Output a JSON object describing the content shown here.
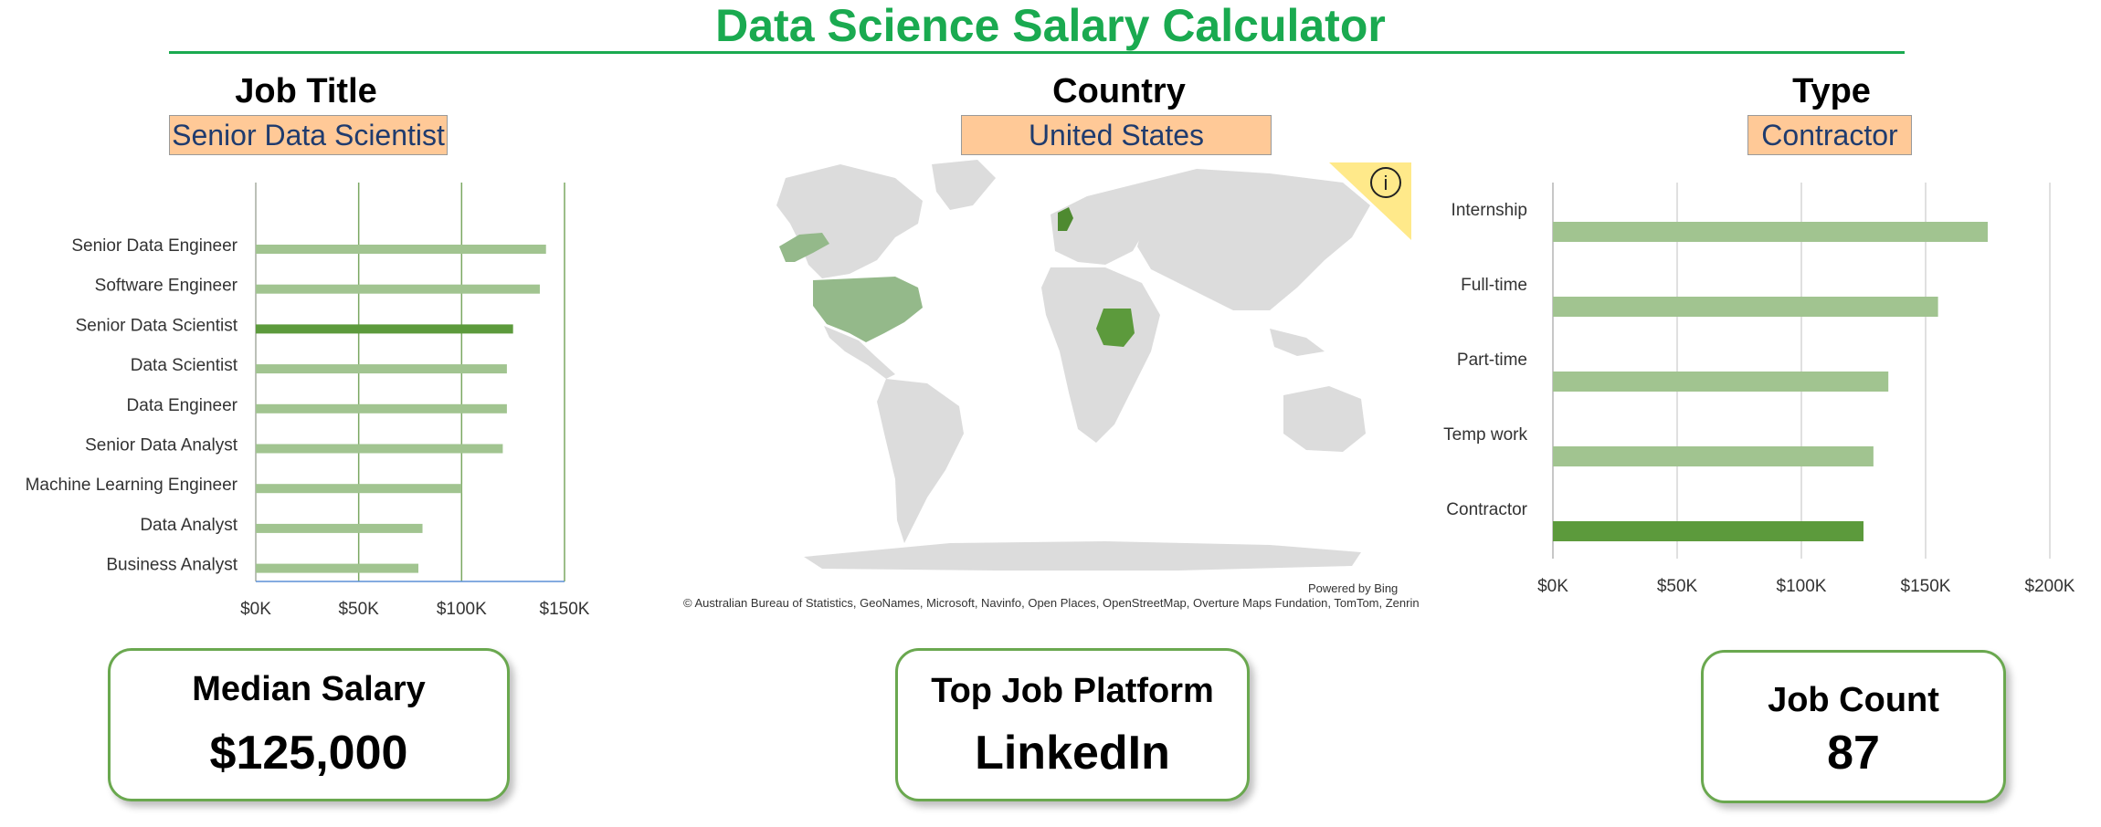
{
  "title": "Data Science Salary Calculator",
  "filters": {
    "job_title": {
      "label": "Job Title",
      "value": "Senior Data Scientist"
    },
    "country": {
      "label": "Country",
      "value": "United States"
    },
    "type": {
      "label": "Type",
      "value": "Contractor"
    }
  },
  "map": {
    "powered_by": "Powered by Bing",
    "attribution": "© Australian Bureau of Statistics, GeoNames, Microsoft, Navinfo, Open Places, OpenStreetMap, Overture Maps Fundation, TomTom, Zenrin",
    "info_icon": "info-icon"
  },
  "kpis": {
    "median_salary": {
      "label": "Median Salary",
      "value": "$125,000"
    },
    "top_platform": {
      "label": "Top Job Platform",
      "value": "LinkedIn"
    },
    "job_count": {
      "label": "Job Count",
      "value": "87"
    }
  },
  "colors": {
    "title": "#1aaa50",
    "bar": "#a1c490",
    "bar_selected": "#5c9a3c",
    "select_fill": "#ffc997",
    "kpi_border": "#6aa84f",
    "map_land": "#dcdcdc",
    "map_highlight": "#94b98a",
    "map_highlight_dark": "#4e8a30"
  },
  "chart_data": [
    {
      "type": "bar",
      "orientation": "horizontal",
      "categories": [
        "Senior Data Engineer",
        "Software Engineer",
        "Senior Data Scientist",
        "Data Scientist",
        "Data Engineer",
        "Senior Data Analyst",
        "Machine Learning Engineer",
        "Data Analyst",
        "Business Analyst"
      ],
      "values": [
        141000,
        138000,
        125000,
        122000,
        122000,
        120000,
        100000,
        81000,
        79000
      ],
      "highlight": "Senior Data Scientist",
      "xlim": [
        0,
        150000
      ],
      "xticks": [
        "$0K",
        "$50K",
        "$100K",
        "$150K"
      ],
      "grid": true
    },
    {
      "type": "bar",
      "orientation": "horizontal",
      "categories": [
        "Internship",
        "Full-time",
        "Part-time",
        "Temp work",
        "Contractor"
      ],
      "values": [
        175000,
        155000,
        135000,
        129000,
        125000
      ],
      "highlight": "Contractor",
      "xlim": [
        0,
        200000
      ],
      "xticks": [
        "$0K",
        "$50K",
        "$100K",
        "$150K",
        "$200K"
      ],
      "grid": true
    }
  ]
}
